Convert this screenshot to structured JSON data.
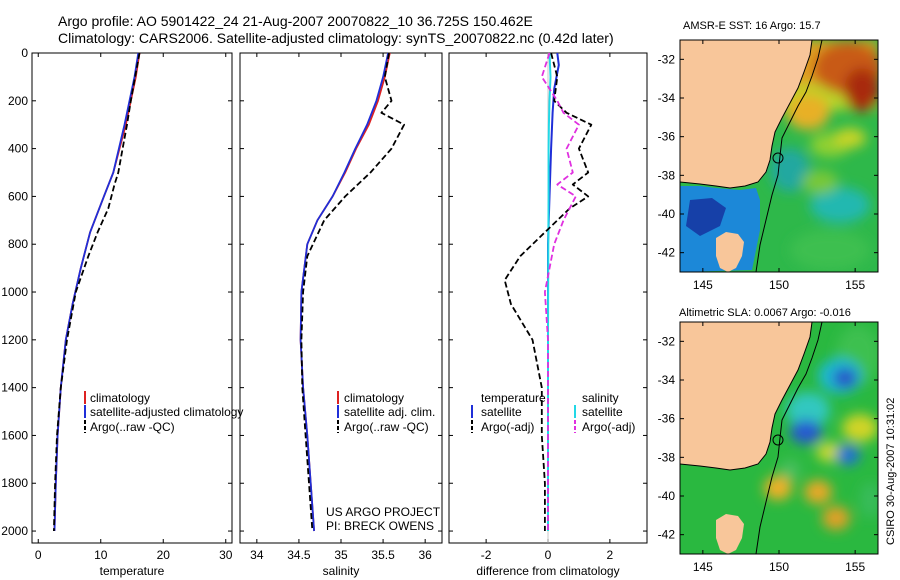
{
  "header": {
    "line1": "Argo profile: AO 5901422_24 21-Aug-2007 20070822_10 36.725S 150.462E",
    "line2": "Climatology: CARS2006. Satellite-adjusted climatology: synTS_20070822.nc (0.42d later)"
  },
  "colors": {
    "climatology": "#dd2222",
    "satellite": "#1f2fd8",
    "argo": "#000000",
    "sat_diff": "#22d8e6",
    "argo_adj": "#e030e0",
    "land": "#f8c69a"
  },
  "chart_data": [
    {
      "type": "line",
      "xlabel": "temperature",
      "xlim": [
        -1,
        31
      ],
      "ylim": [
        2050,
        0
      ],
      "xticks": [
        "0",
        "10",
        "20",
        "30"
      ],
      "yticks": [
        "0",
        "200",
        "400",
        "600",
        "800",
        "1000",
        "1200",
        "1400",
        "1600",
        "1800",
        "2000"
      ],
      "legend": [
        "climatology",
        "satellite-adjusted climatology",
        "Argo(..raw -QC)"
      ],
      "series": [
        {
          "name": "climatology",
          "x": [
            16.2,
            15.6,
            14.8,
            14.0,
            13.0,
            12.0,
            10.5,
            8.3,
            6.8,
            5.5,
            4.4,
            3.6,
            3.1,
            2.8,
            2.6
          ],
          "y": [
            0,
            100,
            200,
            300,
            400,
            500,
            600,
            750,
            900,
            1050,
            1200,
            1400,
            1600,
            1800,
            2000
          ]
        },
        {
          "name": "satellite-adjusted climatology",
          "x": [
            16.0,
            15.4,
            14.6,
            13.8,
            12.9,
            12.0,
            10.5,
            8.3,
            6.8,
            5.5,
            4.4,
            3.6,
            3.1,
            2.8,
            2.6
          ],
          "y": [
            0,
            100,
            200,
            300,
            400,
            500,
            600,
            750,
            900,
            1050,
            1200,
            1400,
            1600,
            1800,
            2000
          ]
        },
        {
          "name": "Argo(..raw -QC)",
          "x": [
            16.2,
            15.5,
            14.8,
            14.2,
            13.5,
            12.8,
            12.2,
            11.2,
            9.5,
            8.0,
            6.0,
            4.6,
            3.6,
            3.0,
            2.7,
            2.5
          ],
          "y": [
            0,
            100,
            200,
            300,
            400,
            500,
            550,
            650,
            750,
            850,
            1000,
            1200,
            1400,
            1600,
            1800,
            2000
          ]
        }
      ]
    },
    {
      "type": "line",
      "xlabel": "salinity",
      "xlim": [
        33.8,
        36.2
      ],
      "ylim": [
        2050,
        0
      ],
      "xticks": [
        "34",
        "34.5",
        "35",
        "35.5",
        "36"
      ],
      "legend": [
        "climatology",
        "satellite adj. clim.",
        "Argo(..raw -QC)"
      ],
      "annotation": [
        "US ARGO PROJECT",
        "PI: BRECK OWENS"
      ],
      "series": [
        {
          "name": "climatology",
          "x": [
            35.58,
            35.52,
            35.44,
            35.33,
            35.18,
            35.05,
            34.9,
            34.72,
            34.6,
            34.53,
            34.52,
            34.55,
            34.6,
            34.64,
            34.68
          ],
          "y": [
            0,
            100,
            200,
            300,
            400,
            500,
            600,
            700,
            800,
            1000,
            1200,
            1400,
            1600,
            1800,
            2000
          ]
        },
        {
          "name": "satellite adj. clim.",
          "x": [
            35.56,
            35.5,
            35.42,
            35.31,
            35.17,
            35.04,
            34.9,
            34.72,
            34.6,
            34.53,
            34.52,
            34.55,
            34.6,
            34.64,
            34.68
          ],
          "y": [
            0,
            100,
            200,
            300,
            400,
            500,
            600,
            700,
            800,
            1000,
            1200,
            1400,
            1600,
            1800,
            2000
          ]
        },
        {
          "name": "Argo(..raw -QC)",
          "x": [
            35.57,
            35.52,
            35.6,
            35.48,
            35.75,
            35.6,
            35.35,
            35.05,
            34.8,
            34.6,
            34.55,
            34.53,
            34.54,
            34.58,
            34.62,
            34.66
          ],
          "y": [
            0,
            100,
            200,
            250,
            300,
            400,
            500,
            600,
            700,
            850,
            1000,
            1200,
            1400,
            1600,
            1800,
            2000
          ]
        }
      ]
    },
    {
      "type": "line",
      "xlabel": "difference from climatology",
      "xlim": [
        -3.2,
        3.2
      ],
      "ylim": [
        2050,
        0
      ],
      "xticks": [
        "-2",
        "0",
        "2"
      ],
      "legend_left_title": "temperature",
      "legend_right_title": "salinity",
      "legend_left": [
        "satellite",
        "Argo(-adj)"
      ],
      "legend_right": [
        "satellite",
        "Argo(-adj)"
      ],
      "series": [
        {
          "name": "temperature satellite",
          "x": [
            0.3,
            0.35,
            0.2,
            0.15,
            0.1,
            0.05,
            0.0,
            0.0,
            0.0,
            0.0
          ],
          "y": [
            0,
            50,
            150,
            250,
            400,
            600,
            800,
            1200,
            1600,
            2000
          ]
        },
        {
          "name": "salinity satellite",
          "x": [
            0.05,
            0.08,
            0.05,
            0.03,
            0.02,
            0.02,
            0.01,
            0.0,
            0.0,
            0.0
          ],
          "y": [
            0,
            100,
            200,
            300,
            400,
            600,
            800,
            1200,
            1600,
            2000
          ]
        },
        {
          "name": "temperature Argo(-adj)",
          "x": [
            0.1,
            0.3,
            0.2,
            0.6,
            1.4,
            1.0,
            1.3,
            0.8,
            1.3,
            0.7,
            -0.1,
            -0.9,
            -1.4,
            -1.2,
            -0.5,
            -0.2,
            -0.2,
            -0.1,
            -0.1
          ],
          "y": [
            0,
            100,
            200,
            250,
            300,
            400,
            500,
            550,
            600,
            650,
            750,
            850,
            950,
            1050,
            1200,
            1400,
            1600,
            1800,
            2000
          ]
        },
        {
          "name": "salinity Argo(-adj)",
          "x": [
            0.05,
            -0.2,
            0.3,
            0.5,
            1.0,
            0.6,
            0.8,
            0.3,
            0.9,
            0.5,
            0.2,
            -0.1,
            0.0,
            0.0,
            0.0
          ],
          "y": [
            0,
            100,
            200,
            250,
            300,
            400,
            500,
            550,
            600,
            700,
            800,
            1000,
            1200,
            1600,
            2000
          ]
        }
      ]
    }
  ],
  "maps": [
    {
      "title": "AMSR-E SST: 16 Argo: 15.7",
      "xticks": [
        "145",
        "150",
        "155"
      ],
      "yticks": [
        "-32",
        "-34",
        "-36",
        "-38",
        "-40",
        "-42"
      ],
      "lon_range": [
        143.5,
        156.5
      ],
      "lat_range": [
        -43,
        -31
      ],
      "float_position": {
        "lon": 150.46,
        "lat": -36.725
      }
    },
    {
      "title": "Altimetric SLA: 0.0067 Argo: -0.016",
      "xticks": [
        "145",
        "150",
        "155"
      ],
      "yticks": [
        "-32",
        "-34",
        "-36",
        "-38",
        "-40",
        "-42"
      ],
      "lon_range": [
        143.5,
        156.5
      ],
      "lat_range": [
        -43,
        -31
      ],
      "float_position": {
        "lon": 150.46,
        "lat": -36.725
      }
    }
  ],
  "side_label": "CSIRO 30-Aug-2007 10:31:02"
}
